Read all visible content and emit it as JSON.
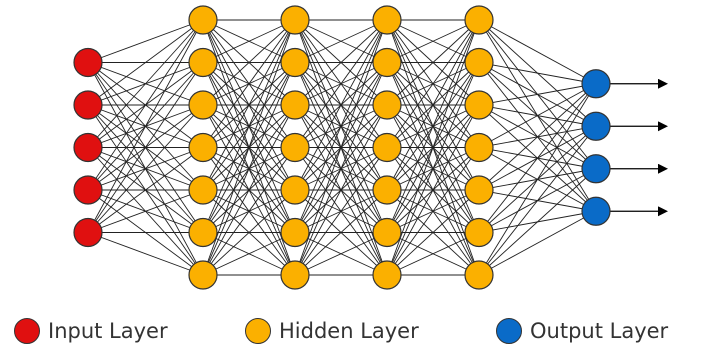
{
  "diagram": {
    "layers": [
      {
        "type": "input",
        "nodes": 5,
        "color": "#e01010"
      },
      {
        "type": "hidden",
        "nodes": 7,
        "color": "#fbb000"
      },
      {
        "type": "hidden",
        "nodes": 7,
        "color": "#fbb000"
      },
      {
        "type": "hidden",
        "nodes": 7,
        "color": "#fbb000"
      },
      {
        "type": "hidden",
        "nodes": 7,
        "color": "#fbb000"
      },
      {
        "type": "output",
        "nodes": 4,
        "color": "#0a6bc8"
      }
    ],
    "edge_color": "#222222",
    "node_border_color": "#333333",
    "output_arrows": true
  },
  "legend": {
    "items": [
      {
        "label": "Input Layer",
        "color": "#e01010"
      },
      {
        "label": "Hidden Layer",
        "color": "#fbb000"
      },
      {
        "label": "Output Layer",
        "color": "#0a6bc8"
      }
    ]
  }
}
